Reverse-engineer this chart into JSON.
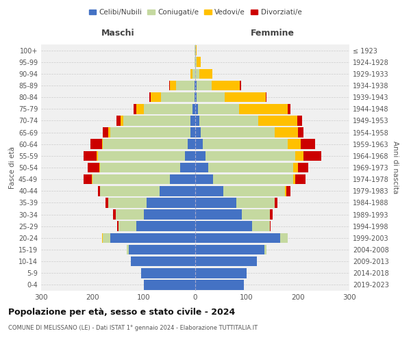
{
  "age_groups": [
    "0-4",
    "5-9",
    "10-14",
    "15-19",
    "20-24",
    "25-29",
    "30-34",
    "35-39",
    "40-44",
    "45-49",
    "50-54",
    "55-59",
    "60-64",
    "65-69",
    "70-74",
    "75-79",
    "80-84",
    "85-89",
    "90-94",
    "95-99",
    "100+"
  ],
  "birth_years": [
    "2019-2023",
    "2014-2018",
    "2009-2013",
    "2004-2008",
    "1999-2003",
    "1994-1998",
    "1989-1993",
    "1984-1988",
    "1979-1983",
    "1974-1978",
    "1969-1973",
    "1964-1968",
    "1959-1963",
    "1954-1958",
    "1949-1953",
    "1944-1948",
    "1939-1943",
    "1934-1938",
    "1929-1933",
    "1924-1928",
    "≤ 1923"
  ],
  "male": {
    "celibi": [
      100,
      105,
      125,
      130,
      165,
      115,
      100,
      95,
      70,
      50,
      30,
      20,
      15,
      10,
      10,
      5,
      2,
      2,
      0,
      0,
      0
    ],
    "coniugati": [
      0,
      0,
      0,
      3,
      15,
      35,
      55,
      75,
      115,
      150,
      155,
      170,
      165,
      155,
      130,
      95,
      65,
      35,
      5,
      2,
      1
    ],
    "vedovi": [
      0,
      0,
      0,
      0,
      2,
      0,
      0,
      0,
      0,
      2,
      2,
      2,
      2,
      5,
      5,
      15,
      20,
      12,
      5,
      0,
      0
    ],
    "divorziati": [
      0,
      0,
      0,
      0,
      0,
      2,
      5,
      5,
      5,
      15,
      22,
      25,
      22,
      10,
      8,
      5,
      2,
      2,
      0,
      0,
      0
    ]
  },
  "female": {
    "nubili": [
      95,
      100,
      120,
      135,
      165,
      110,
      90,
      80,
      55,
      35,
      25,
      20,
      15,
      10,
      8,
      5,
      2,
      2,
      0,
      0,
      0
    ],
    "coniugate": [
      0,
      0,
      0,
      3,
      15,
      35,
      55,
      75,
      120,
      155,
      165,
      175,
      165,
      145,
      115,
      80,
      55,
      30,
      8,
      3,
      1
    ],
    "vedove": [
      0,
      0,
      0,
      0,
      0,
      0,
      0,
      0,
      2,
      5,
      10,
      15,
      25,
      45,
      75,
      95,
      80,
      55,
      25,
      8,
      2
    ],
    "divorziate": [
      0,
      0,
      0,
      0,
      0,
      2,
      5,
      5,
      8,
      20,
      20,
      35,
      28,
      10,
      10,
      5,
      2,
      2,
      0,
      0,
      0
    ]
  },
  "colors": {
    "celibi": "#4472c4",
    "coniugati": "#c5d9a0",
    "vedovi": "#ffc000",
    "divorziati": "#cc0000"
  },
  "title": "Popolazione per età, sesso e stato civile - 2024",
  "subtitle": "COMUNE DI MELISSANO (LE) - Dati ISTAT 1° gennaio 2024 - Elaborazione TUTTITALIA.IT",
  "xlabel_left": "Maschi",
  "xlabel_right": "Femmine",
  "ylabel_left": "Fasce di età",
  "ylabel_right": "Anni di nascita",
  "xlim": 300,
  "bg_color": "#ffffff",
  "grid_color": "#cccccc",
  "legend_labels": [
    "Celibi/Nubili",
    "Coniugati/e",
    "Vedovi/e",
    "Divorziati/e"
  ]
}
